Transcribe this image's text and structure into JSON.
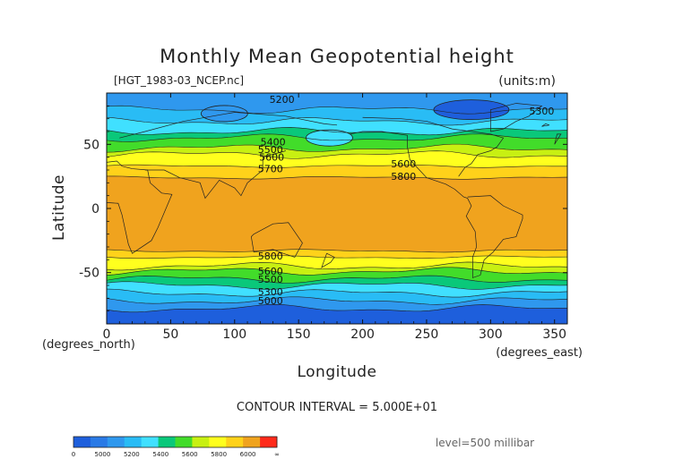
{
  "chart_data": {
    "type": "contour",
    "title": "Monthly Mean Geopotential height",
    "subtitle_left": "[HGT_1983-03_NCEP.nc]",
    "units": "(units:m)",
    "xlabel": "Longitude",
    "x_units": "(degrees_east)",
    "ylabel": "Latitude",
    "y_units": "(degrees_north)",
    "xlim": [
      0,
      360
    ],
    "ylim": [
      -90,
      90
    ],
    "x_ticks": [
      0,
      50,
      100,
      150,
      200,
      250,
      300,
      350
    ],
    "y_ticks": [
      -50,
      0,
      50
    ],
    "contour_interval_text": "CONTOUR INTERVAL = 5.000E+01",
    "level_text": "level=500 millibar",
    "contour_labels": [
      {
        "text": "5200",
        "lon": 137,
        "lat": 85
      },
      {
        "text": "5300",
        "lon": 340,
        "lat": 76
      },
      {
        "text": "5400",
        "lon": 130,
        "lat": 52
      },
      {
        "text": "5500",
        "lon": 128,
        "lat": 46
      },
      {
        "text": "5600",
        "lon": 129,
        "lat": 40
      },
      {
        "text": "5700",
        "lon": 128,
        "lat": 31
      },
      {
        "text": "5600",
        "lon": 232,
        "lat": 35
      },
      {
        "text": "5800",
        "lon": 232,
        "lat": 25
      },
      {
        "text": "5800",
        "lon": 128,
        "lat": -37
      },
      {
        "text": "5600",
        "lon": 128,
        "lat": -49
      },
      {
        "text": "5500",
        "lon": 128,
        "lat": -55
      },
      {
        "text": "5300",
        "lon": 128,
        "lat": -65
      },
      {
        "text": "5000",
        "lon": 128,
        "lat": -72
      }
    ],
    "color_bands": [
      {
        "lower": 0,
        "upper": 5000,
        "color": "#1e5fdc"
      },
      {
        "lower": 5000,
        "upper": 5100,
        "color": "#2a7ae6"
      },
      {
        "lower": 5100,
        "upper": 5200,
        "color": "#2f98ee"
      },
      {
        "lower": 5200,
        "upper": 5300,
        "color": "#29bcf5"
      },
      {
        "lower": 5300,
        "upper": 5400,
        "color": "#40e0ff"
      },
      {
        "lower": 5400,
        "upper": 5500,
        "color": "#0ac87a"
      },
      {
        "lower": 5500,
        "upper": 5600,
        "color": "#42dc2a"
      },
      {
        "lower": 5600,
        "upper": 5650,
        "color": "#c8f012"
      },
      {
        "lower": 5650,
        "upper": 5700,
        "color": "#ffff1e"
      },
      {
        "lower": 5700,
        "upper": 5800,
        "color": "#ffd21a"
      },
      {
        "lower": 5800,
        "upper": 6000,
        "color": "#f0a31e"
      },
      {
        "lower": 6000,
        "upper": 9999,
        "color": "#ff2a1a"
      }
    ],
    "field_bands": [
      {
        "lat_top": 90,
        "lat_bottom": 77,
        "value": 5150
      },
      {
        "lat_top": 77,
        "lat_bottom": 68,
        "value": 5250
      },
      {
        "lat_top": 68,
        "lat_bottom": 60,
        "value": 5350
      },
      {
        "lat_top": 60,
        "lat_bottom": 55,
        "value": 5450
      },
      {
        "lat_top": 55,
        "lat_bottom": 47,
        "value": 5550
      },
      {
        "lat_top": 47,
        "lat_bottom": 42,
        "value": 5620
      },
      {
        "lat_top": 42,
        "lat_bottom": 33,
        "value": 5680
      },
      {
        "lat_top": 33,
        "lat_bottom": 24,
        "value": 5750
      },
      {
        "lat_top": 24,
        "lat_bottom": -33,
        "value": 5850
      },
      {
        "lat_top": -33,
        "lat_bottom": -38,
        "value": 5750
      },
      {
        "lat_top": -38,
        "lat_bottom": -45,
        "value": 5680
      },
      {
        "lat_top": -45,
        "lat_bottom": -49,
        "value": 5620
      },
      {
        "lat_top": -49,
        "lat_bottom": -55,
        "value": 5550
      },
      {
        "lat_top": -55,
        "lat_bottom": -60,
        "value": 5450
      },
      {
        "lat_top": -60,
        "lat_bottom": -66,
        "value": 5350
      },
      {
        "lat_top": -66,
        "lat_bottom": -72,
        "value": 5250
      },
      {
        "lat_top": -72,
        "lat_bottom": -78,
        "value": 5150
      },
      {
        "lat_top": -78,
        "lat_bottom": -90,
        "value": 4950
      }
    ],
    "lows": [
      {
        "lon": 92,
        "lat": 74,
        "value": 5150
      },
      {
        "lon": 174,
        "lat": 55,
        "value": 5350
      },
      {
        "lon": 285,
        "lat": 77,
        "value": 4950
      }
    ],
    "colorbar": {
      "labels": [
        "0",
        "5000",
        "5200",
        "5400",
        "5600",
        "5800",
        "6000",
        "∞"
      ]
    }
  }
}
